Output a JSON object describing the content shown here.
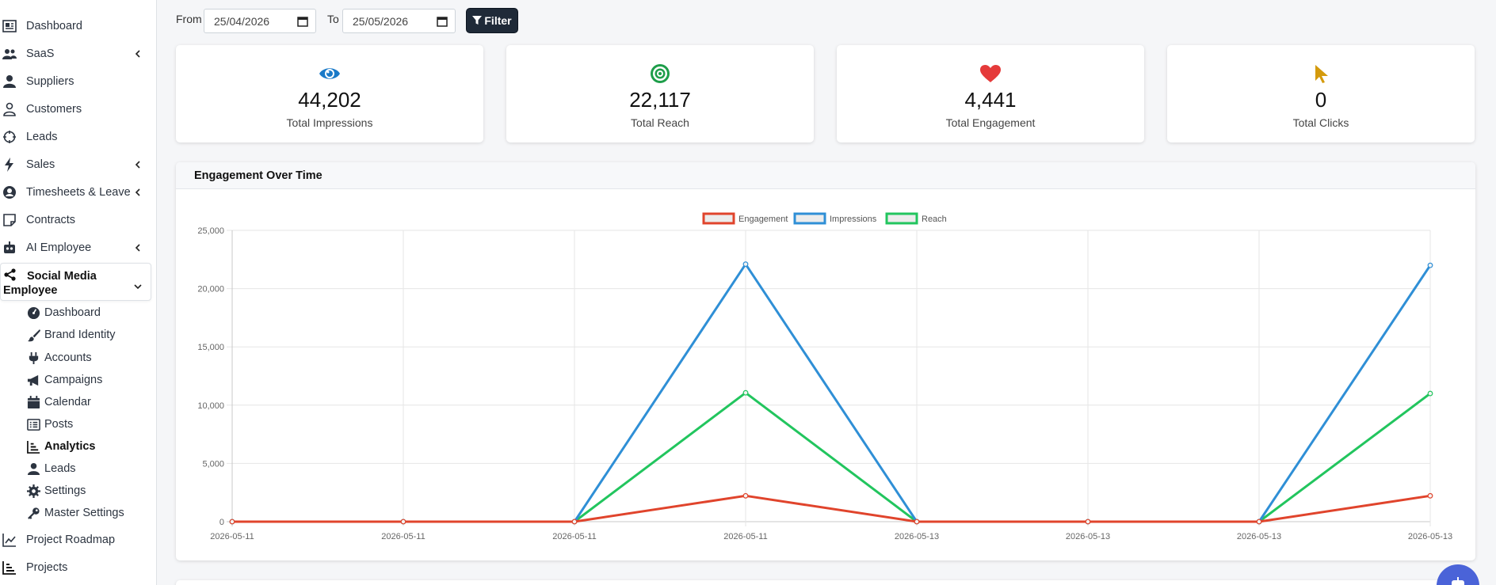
{
  "sidebar": {
    "items": [
      {
        "label": "Dashboard",
        "icon": "dashboard-icon"
      },
      {
        "label": "SaaS",
        "icon": "layers-icon"
      },
      {
        "label": "Suppliers",
        "icon": "users-icon"
      },
      {
        "label": "Customers",
        "icon": "user-icon"
      },
      {
        "label": "Leads",
        "icon": "crosshair-icon"
      },
      {
        "label": "Sales",
        "icon": "bolt-icon"
      },
      {
        "label": "Timesheets & Leave",
        "icon": "user-circle-icon"
      },
      {
        "label": "Contracts",
        "icon": "note-icon"
      },
      {
        "label": "AI Employee",
        "icon": "robot-icon"
      }
    ],
    "active_group": {
      "label_line1": "Social Media",
      "label_line2": "Employee",
      "icon": "share-icon",
      "sub_items": [
        {
          "label": "Dashboard",
          "icon": "gauge-icon"
        },
        {
          "label": "Brand Identity",
          "icon": "brush-icon"
        },
        {
          "label": "Accounts",
          "icon": "plug-icon"
        },
        {
          "label": "Campaigns",
          "icon": "megaphone-icon"
        },
        {
          "label": "Calendar",
          "icon": "calendar-icon"
        },
        {
          "label": "Posts",
          "icon": "list-icon"
        },
        {
          "label": "Analytics",
          "icon": "chart-bar-icon"
        },
        {
          "label": "Leads",
          "icon": "users-icon"
        },
        {
          "label": "Settings",
          "icon": "gear-icon"
        },
        {
          "label": "Master Settings",
          "icon": "key-icon"
        }
      ]
    },
    "bottom_items": [
      {
        "label": "Project Roadmap",
        "icon": "chart-line-icon"
      },
      {
        "label": "Projects",
        "icon": "chart-bar-icon"
      }
    ]
  },
  "filter": {
    "from_label": "From",
    "from_value": "25/04/2026",
    "to_label": "To",
    "to_value": "25/05/2026",
    "button_label": "Filter"
  },
  "stats": [
    {
      "value": "44,202",
      "label": "Total Impressions",
      "icon": "eye-icon",
      "color": "#1a7ac8"
    },
    {
      "value": "22,117",
      "label": "Total Reach",
      "icon": "target-icon",
      "color": "#1e9e4a"
    },
    {
      "value": "4,441",
      "label": "Total Engagement",
      "icon": "heart-icon",
      "color": "#e53a3a"
    },
    {
      "value": "0",
      "label": "Total Clicks",
      "icon": "cursor-icon",
      "color": "#d49a0c"
    }
  ],
  "panel": {
    "title": "Engagement Over Time"
  },
  "chart_data": {
    "type": "line",
    "title": "",
    "xlabel": "",
    "ylabel": "",
    "categories": [
      "2026-05-11",
      "2026-05-11",
      "2026-05-11",
      "2026-05-11",
      "2026-05-13",
      "2026-05-13",
      "2026-05-13",
      "2026-05-13"
    ],
    "ylim": [
      0,
      25000
    ],
    "yticks": [
      0,
      5000,
      10000,
      15000,
      20000,
      25000
    ],
    "ytick_labels": [
      "0",
      "5,000",
      "10,000",
      "15,000",
      "20,000",
      "25,000"
    ],
    "grid": true,
    "legend": "top-center",
    "series": [
      {
        "name": "Engagement",
        "color": "#e0442c",
        "values": [
          0,
          0,
          0,
          2220,
          0,
          0,
          0,
          2220
        ]
      },
      {
        "name": "Impressions",
        "color": "#2f8fd6",
        "values": [
          0,
          0,
          0,
          22100,
          0,
          0,
          0,
          22000
        ]
      },
      {
        "name": "Reach",
        "color": "#22c55e",
        "values": [
          0,
          0,
          0,
          11060,
          0,
          0,
          0,
          11000
        ]
      }
    ]
  }
}
